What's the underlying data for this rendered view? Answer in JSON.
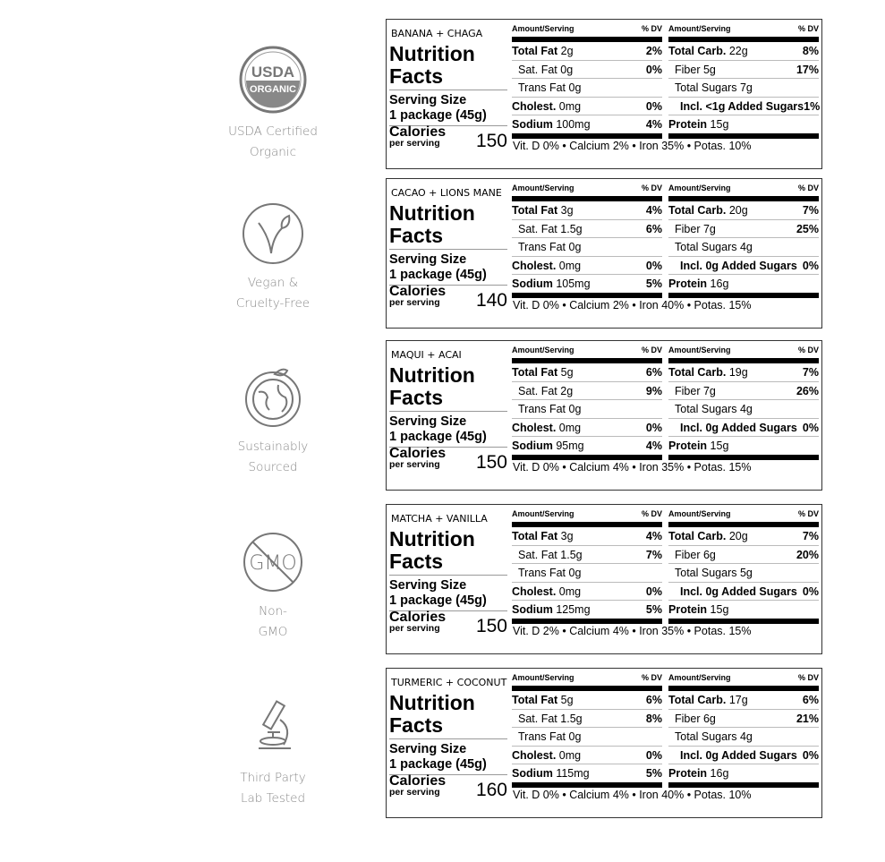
{
  "badges": [
    {
      "icon": "usda-organic-seal-icon",
      "seal_top": "USDA",
      "seal_bottom": "ORGANIC",
      "line1": "USDA Certified",
      "line2": "Organic"
    },
    {
      "icon": "vegan-leaf-icon",
      "line1": "Vegan &",
      "line2": "Cruelty-Free"
    },
    {
      "icon": "globe-leaf-icon",
      "line1": "Sustainably",
      "line2": "Sourced"
    },
    {
      "icon": "non-gmo-icon",
      "seal_top": "GMO",
      "line1": "Non-",
      "line2": "GMO"
    },
    {
      "icon": "microscope-icon",
      "line1": "Third Party",
      "line2": "Lab Tested"
    }
  ],
  "common": {
    "nutrition": "Nutrition",
    "facts": "Facts",
    "serving_size": "Serving Size",
    "package": "1 package (45g)",
    "calories": "Calories",
    "per_serving": "per serving",
    "amount_serving": "Amount/Serving",
    "dv": "% DV"
  },
  "labels": [
    {
      "title": "BANANA + CHAGA",
      "calories": "150",
      "left": [
        {
          "name": "Total Fat",
          "amount": "2g",
          "dv": "2%"
        },
        {
          "name": "Sat. Fat",
          "amount": "0g",
          "dv": "0%"
        },
        {
          "name": "Trans Fat",
          "amount": "0g",
          "dv": ""
        },
        {
          "name": "Cholest.",
          "amount": "0mg",
          "dv": "0%"
        },
        {
          "name": "Sodium",
          "amount": "100mg",
          "dv": "4%"
        }
      ],
      "right": [
        {
          "name": "Total Carb.",
          "amount": "22g",
          "dv": "8%"
        },
        {
          "name": "Fiber",
          "amount": "5g",
          "dv": "17%"
        },
        {
          "name": "Total Sugars",
          "amount": "7g",
          "dv": ""
        },
        {
          "name": "Incl. <1g Added Sugars",
          "amount": "",
          "dv": "1%"
        },
        {
          "name": "Protein",
          "amount": "15g",
          "dv": ""
        }
      ],
      "vitamins": "Vit. D 0% • Calcium 2% • Iron 35% • Potas. 10%"
    },
    {
      "title": "CACAO + LIONS MANE",
      "calories": "140",
      "left": [
        {
          "name": "Total Fat",
          "amount": "3g",
          "dv": "4%"
        },
        {
          "name": "Sat. Fat",
          "amount": "1.5g",
          "dv": "6%"
        },
        {
          "name": "Trans Fat",
          "amount": "0g",
          "dv": ""
        },
        {
          "name": "Cholest.",
          "amount": "0mg",
          "dv": "0%"
        },
        {
          "name": "Sodium",
          "amount": "105mg",
          "dv": "5%"
        }
      ],
      "right": [
        {
          "name": "Total Carb.",
          "amount": "20g",
          "dv": "7%"
        },
        {
          "name": "Fiber",
          "amount": "7g",
          "dv": "25%"
        },
        {
          "name": "Total Sugars",
          "amount": "4g",
          "dv": ""
        },
        {
          "name": "Incl. 0g Added Sugars",
          "amount": "",
          "dv": "0%"
        },
        {
          "name": "Protein",
          "amount": "16g",
          "dv": ""
        }
      ],
      "vitamins": "Vit. D 0% • Calcium 2% • Iron 40% • Potas. 15%"
    },
    {
      "title": "MAQUI + ACAI",
      "calories": "150",
      "left": [
        {
          "name": "Total Fat",
          "amount": "5g",
          "dv": "6%"
        },
        {
          "name": "Sat. Fat",
          "amount": "2g",
          "dv": "9%"
        },
        {
          "name": "Trans Fat",
          "amount": "0g",
          "dv": ""
        },
        {
          "name": "Cholest.",
          "amount": "0mg",
          "dv": "0%"
        },
        {
          "name": "Sodium",
          "amount": "95mg",
          "dv": "4%"
        }
      ],
      "right": [
        {
          "name": "Total Carb.",
          "amount": "19g",
          "dv": "7%"
        },
        {
          "name": "Fiber",
          "amount": "7g",
          "dv": "26%"
        },
        {
          "name": "Total Sugars",
          "amount": "4g",
          "dv": ""
        },
        {
          "name": "Incl. 0g Added Sugars",
          "amount": "",
          "dv": "0%"
        },
        {
          "name": "Protein",
          "amount": "15g",
          "dv": ""
        }
      ],
      "vitamins": "Vit. D 0% • Calcium 4% • Iron 35% • Potas. 15%"
    },
    {
      "title": "MATCHA + VANILLA",
      "calories": "150",
      "left": [
        {
          "name": "Total Fat",
          "amount": "3g",
          "dv": "4%"
        },
        {
          "name": "Sat. Fat",
          "amount": "1.5g",
          "dv": "7%"
        },
        {
          "name": "Trans Fat",
          "amount": "0g",
          "dv": ""
        },
        {
          "name": "Cholest.",
          "amount": "0mg",
          "dv": "0%"
        },
        {
          "name": "Sodium",
          "amount": "125mg",
          "dv": "5%"
        }
      ],
      "right": [
        {
          "name": "Total Carb.",
          "amount": "20g",
          "dv": "7%"
        },
        {
          "name": "Fiber",
          "amount": "6g",
          "dv": "20%"
        },
        {
          "name": "Total Sugars",
          "amount": "5g",
          "dv": ""
        },
        {
          "name": "Incl. 0g Added Sugars",
          "amount": "",
          "dv": "0%"
        },
        {
          "name": "Protein",
          "amount": "15g",
          "dv": ""
        }
      ],
      "vitamins": "Vit. D 2% • Calcium 4% • Iron 35% • Potas. 15%"
    },
    {
      "title": "TURMERIC + COCONUT",
      "calories": "160",
      "left": [
        {
          "name": "Total Fat",
          "amount": "5g",
          "dv": "6%"
        },
        {
          "name": "Sat. Fat",
          "amount": "1.5g",
          "dv": "8%"
        },
        {
          "name": "Trans Fat",
          "amount": "0g",
          "dv": ""
        },
        {
          "name": "Cholest.",
          "amount": "0mg",
          "dv": "0%"
        },
        {
          "name": "Sodium",
          "amount": "115mg",
          "dv": "5%"
        }
      ],
      "right": [
        {
          "name": "Total Carb.",
          "amount": "17g",
          "dv": "6%"
        },
        {
          "name": "Fiber",
          "amount": "6g",
          "dv": "21%"
        },
        {
          "name": "Total Sugars",
          "amount": "4g",
          "dv": ""
        },
        {
          "name": "Incl. 0g Added Sugars",
          "amount": "",
          "dv": "0%"
        },
        {
          "name": "Protein",
          "amount": "16g",
          "dv": ""
        }
      ],
      "vitamins": "Vit. D 0% • Calcium 4% • Iron 40% • Potas. 10%"
    }
  ]
}
